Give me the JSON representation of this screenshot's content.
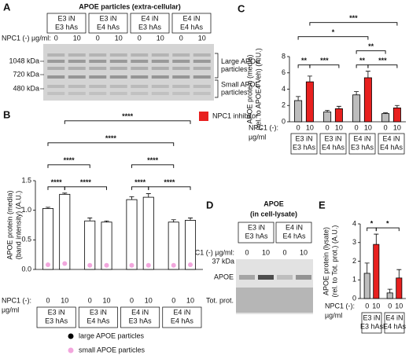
{
  "blot_a": {
    "panel": "A",
    "title": "APOE particles (extra-cellular)",
    "groups": [
      [
        "E3 iN",
        "E3 hAs"
      ],
      [
        "E3 iN",
        "E4 hAs"
      ],
      [
        "E4 iN",
        "E3 hAs"
      ],
      [
        "E4 iN",
        "E4 hAs"
      ]
    ],
    "dose_label": "NPC1 (-) µg/ml:",
    "doses": [
      "0",
      "10",
      "0",
      "10",
      "0",
      "10",
      "0",
      "10"
    ],
    "markers": [
      "1048 kDa",
      "720 kDa",
      "480 kDa"
    ],
    "regions": [
      [
        "Large APOE",
        "particles"
      ],
      [
        "Small APOE",
        "particles"
      ]
    ]
  },
  "blot_d": {
    "panel": "D",
    "title": "APOE",
    "subtitle": "(in cell-lysate)",
    "groups": [
      [
        "E3 iN",
        "E3 hAs"
      ],
      [
        "E4 iN",
        "E4 hAs"
      ]
    ],
    "dose_label": "NPC1 (-) µg/ml:",
    "doses": [
      "0",
      "10",
      "0",
      "10"
    ],
    "marker": "37 kDa",
    "rows": [
      "APOE",
      "Tot. prot."
    ]
  },
  "chart_data": [
    {
      "type": "bar",
      "panel": "B",
      "ylabel": [
        "APOE protein (media)",
        "(band intensity) (A.U.)"
      ],
      "xprefix": [
        "NPC1 (-):",
        "µg/ml"
      ],
      "categories": [
        "0",
        "10",
        "0",
        "10",
        "0",
        "10",
        "0",
        "10"
      ],
      "groups": [
        [
          "E3 iN",
          "E3 hAs"
        ],
        [
          "E3 iN",
          "E4 hAs"
        ],
        [
          "E4 iN",
          "E3 hAs"
        ],
        [
          "E4 iN",
          "E4 hAs"
        ]
      ],
      "ylim": [
        0,
        1.5
      ],
      "yticks": [
        {
          "value": 0,
          "label": "0.0"
        },
        0.5,
        {
          "value": 1,
          "label": "1.0"
        },
        {
          "value": 1.5,
          "label": "1.5"
        }
      ],
      "series": [
        {
          "name": "large APOE particles",
          "marker": "bar",
          "color": "#000000",
          "fill": "#ffffff",
          "values": [
            1.03,
            1.27,
            0.82,
            0.8,
            1.18,
            1.22,
            0.8,
            0.83
          ],
          "errors": [
            0.02,
            0.02,
            0.05,
            0.02,
            0.05,
            0.06,
            0.04,
            0.04
          ]
        },
        {
          "name": "small APOE particles",
          "marker": "dot",
          "color": "#f2a6dd",
          "values": [
            0.08,
            0.1,
            0.07,
            0.07,
            0.07,
            0.07,
            0.07,
            0.08
          ]
        }
      ],
      "comparisons": [
        {
          "from": 0,
          "to": 1,
          "label": "****"
        },
        {
          "from": 1,
          "to": 3,
          "label": "****"
        },
        {
          "from": 4,
          "to": 5,
          "label": "****"
        },
        {
          "from": 5,
          "to": 7,
          "label": "****"
        },
        {
          "from": 0,
          "to": 2,
          "label": "****"
        },
        {
          "from": 4,
          "to": 6,
          "label": "****"
        },
        {
          "from": 0,
          "to": 6,
          "label": "****"
        },
        {
          "from": 1,
          "to": 7,
          "label": "****"
        }
      ]
    },
    {
      "type": "bar",
      "panel": "C",
      "ylabel": [
        "APOE protein (media)",
        "(rel. to APOE4 Veh) (A.U.)"
      ],
      "xprefix": [
        "NPC1 (-):",
        "µg/ml"
      ],
      "categories": [
        "0",
        "10",
        "0",
        "10",
        "0",
        "10",
        "0",
        "10"
      ],
      "groups": [
        [
          "E3 iN",
          "E3 hAs"
        ],
        [
          "E3 iN",
          "E4 hAs"
        ],
        [
          "E4 iN",
          "E3 hAs"
        ],
        [
          "E4 iN",
          "E4 hAs"
        ]
      ],
      "ylim": [
        0,
        8
      ],
      "yticks": [
        0,
        2,
        4,
        6,
        8
      ],
      "legend": {
        "name": "NPC1 inhibitor",
        "color": "#e8201f"
      },
      "series": [
        {
          "marker": "bar",
          "color": "#000000",
          "colors": [
            "#bdbdbd",
            "#e8201f",
            "#bdbdbd",
            "#e8201f",
            "#bdbdbd",
            "#e8201f",
            "#bdbdbd",
            "#e8201f"
          ],
          "values": [
            2.6,
            4.9,
            1.2,
            1.6,
            3.3,
            5.4,
            1.0,
            1.7
          ],
          "errors": [
            0.5,
            0.7,
            0.2,
            0.3,
            0.4,
            0.8,
            0.1,
            0.3
          ]
        }
      ],
      "comparisons": [
        {
          "from": 0,
          "to": 1,
          "label": "**"
        },
        {
          "from": 1,
          "to": 3,
          "label": "***"
        },
        {
          "from": 4,
          "to": 5,
          "label": "**"
        },
        {
          "from": 5,
          "to": 7,
          "label": "***"
        },
        {
          "from": 4,
          "to": 6,
          "label": "**"
        },
        {
          "from": 0,
          "to": 5,
          "label": "*"
        },
        {
          "from": 1,
          "to": 7,
          "label": "***"
        }
      ]
    },
    {
      "type": "bar",
      "panel": "E",
      "ylabel": [
        "APOE protein (lysate)",
        "(rel. to Tot. prot.) (A.U.)"
      ],
      "xprefix": [
        "NPC1 (-):",
        "µg/ml"
      ],
      "categories": [
        "0",
        "10",
        "0",
        "10"
      ],
      "groups": [
        [
          "E3 iN",
          "E3 hAs"
        ],
        [
          "E4 iN",
          "E4 hAs"
        ]
      ],
      "ylim": [
        0,
        4
      ],
      "yticks": [
        0,
        1,
        2,
        3,
        4
      ],
      "series": [
        {
          "marker": "bar",
          "color": "#000000",
          "colors": [
            "#bdbdbd",
            "#e8201f",
            "#bdbdbd",
            "#e8201f"
          ],
          "values": [
            1.35,
            2.9,
            0.3,
            1.1
          ],
          "errors": [
            0.55,
            0.55,
            0.2,
            0.45
          ]
        }
      ],
      "comparisons": [
        {
          "from": 0,
          "to": 1,
          "label": "*"
        },
        {
          "from": 1,
          "to": 3,
          "label": "*"
        }
      ]
    }
  ]
}
